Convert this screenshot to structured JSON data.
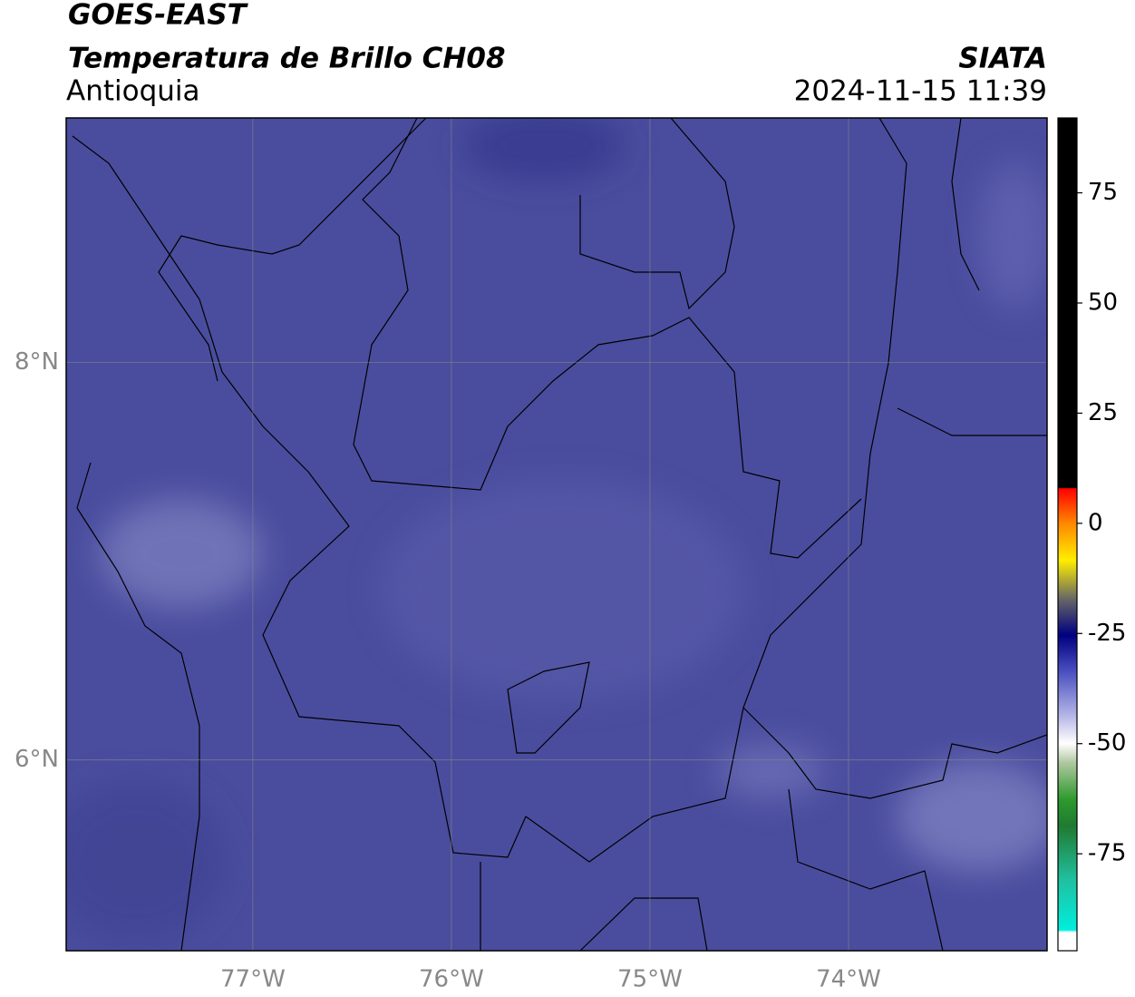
{
  "header": {
    "title": "GOES-EAST",
    "subtitle": "Temperatura de Brillo CH08",
    "region": "Antioquia",
    "source": "SIATA",
    "timestamp": "2024-11-15 11:39"
  },
  "map": {
    "xlim": [
      -77.94,
      -73.0
    ],
    "ylim": [
      5.04,
      9.23
    ],
    "xticks": [
      {
        "value": -77,
        "label": "77°W"
      },
      {
        "value": -76,
        "label": "76°W"
      },
      {
        "value": -75,
        "label": "75°W"
      },
      {
        "value": -74,
        "label": "74°W"
      }
    ],
    "yticks": [
      {
        "value": 8,
        "label": "8°N"
      },
      {
        "value": 6,
        "label": "6°N"
      }
    ],
    "grid": true
  },
  "colorbar": {
    "clim": [
      -97,
      92
    ],
    "ticks": [
      -75,
      -50,
      -25,
      0,
      25,
      50,
      75
    ]
  }
}
